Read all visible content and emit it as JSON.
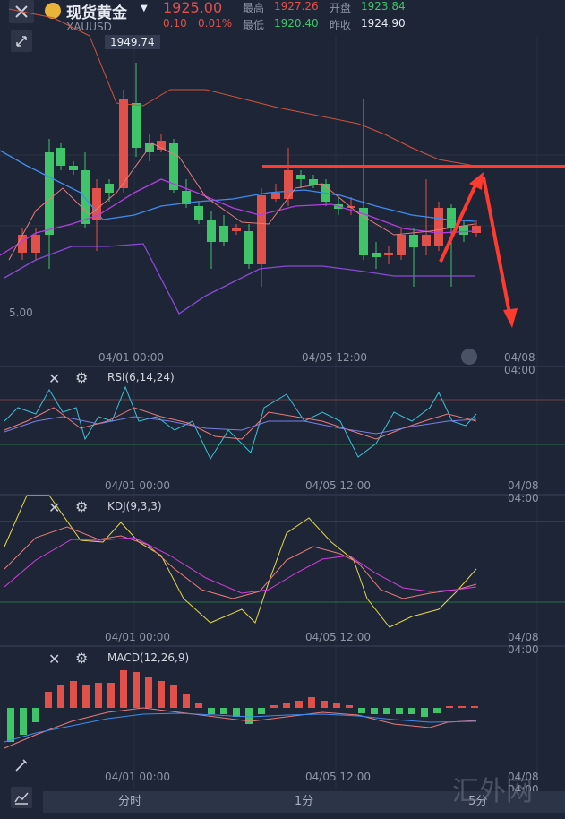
{
  "header": {
    "title": "现货黄金",
    "symbol": "XAUUSD",
    "price": "1925.00",
    "change": "0.10",
    "change_pct": "0.01%",
    "high_label": "最高",
    "high_value": "1927.26",
    "low_label": "最低",
    "low_value": "1920.40",
    "open_label": "开盘",
    "open_value": "1923.84",
    "prev_close_label": "昨收",
    "prev_close_value": "1924.90"
  },
  "main_chart": {
    "peak_label": "1949.74",
    "left_price_label": "5.00",
    "x_labels": [
      "04/01 00:00",
      "04/05 12:00",
      "04/08 04:00"
    ]
  },
  "rsi": {
    "label": "RSI(6,14,24)",
    "x_labels": [
      "04/01 00:00",
      "04/05 12:00",
      "04/08 04:00"
    ]
  },
  "kdj": {
    "label": "KDJ(9,3,3)",
    "x_labels": [
      "04/01 00:00",
      "04/05 12:00",
      "04/08 04:00"
    ]
  },
  "macd": {
    "label": "MACD(12,26,9)",
    "x_labels": [
      "04/01 00:00",
      "04/05 12:00",
      "04/08 04:00"
    ]
  },
  "bottom_bar": {
    "tabs": [
      "分时",
      "1分",
      "5分"
    ]
  },
  "watermark": "汇外网",
  "colors": {
    "up": "#e2504a",
    "down": "#3fc46a",
    "bg": "#1d2536",
    "annotation": "#ff3b30"
  }
}
